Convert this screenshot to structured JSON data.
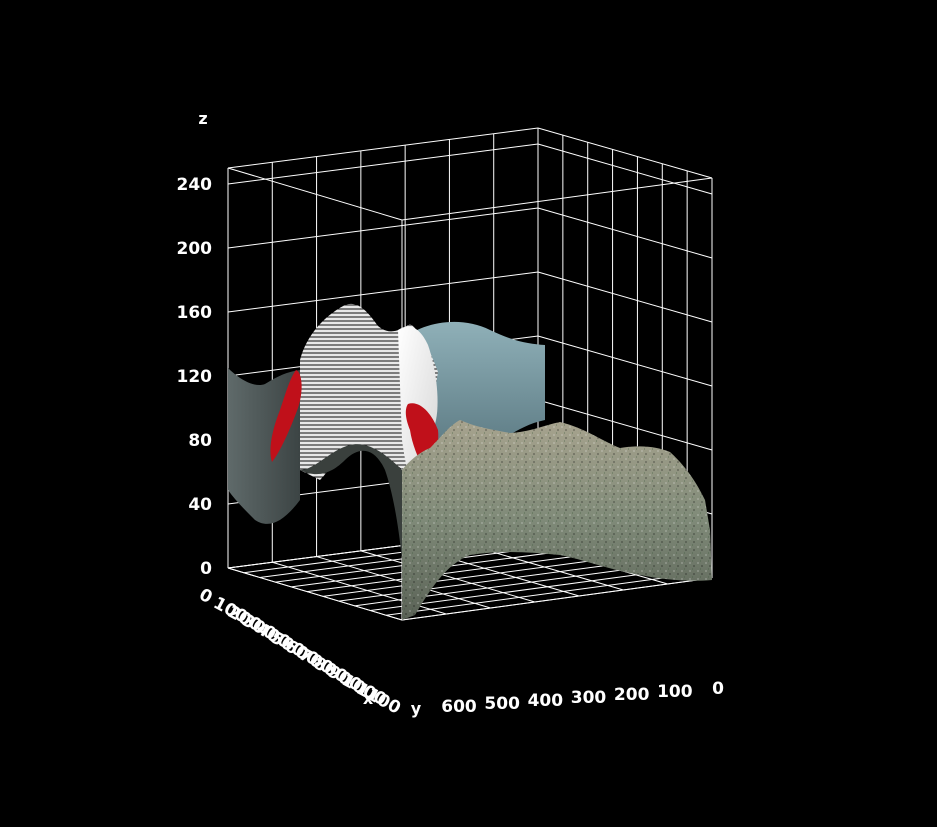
{
  "chart_data": {
    "type": "3d-surface",
    "title": "",
    "xlabel": "x",
    "ylabel": "y",
    "zlabel": "z",
    "x_ticks": [
      "0",
      "100",
      "200",
      "300",
      "400",
      "500",
      "600",
      "700",
      "800",
      "900",
      "1000",
      "1100"
    ],
    "y_ticks": [
      "600",
      "500",
      "400",
      "300",
      "200",
      "100",
      "0"
    ],
    "z_ticks": [
      "0",
      "40",
      "80",
      "120",
      "160",
      "200",
      "240"
    ],
    "xlim": [
      0,
      1100
    ],
    "ylim": [
      0,
      650
    ],
    "zlim": [
      0,
      250
    ],
    "grid": true,
    "colors": {
      "background": "#000000",
      "axes": "#ffffff",
      "surface_near": "#8b8f7c",
      "surface_far": "#6f8e97",
      "logo_red": "#c0101a"
    }
  }
}
